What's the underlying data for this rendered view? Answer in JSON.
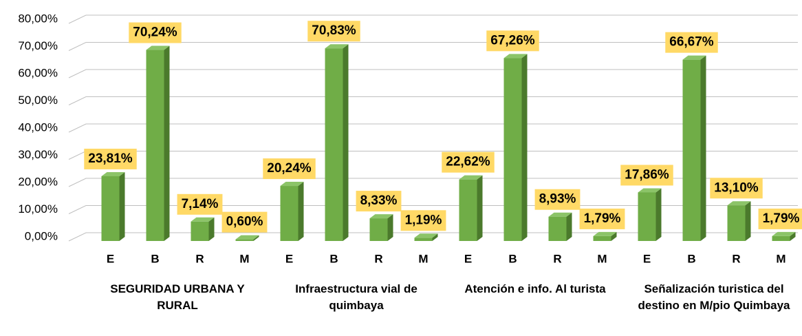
{
  "chart_data": {
    "type": "bar",
    "categories": [
      "E",
      "B",
      "R",
      "M",
      "E",
      "B",
      "R",
      "M",
      "E",
      "B",
      "R",
      "M",
      "E",
      "B",
      "R",
      "M"
    ],
    "groups": [
      "SEGURIDAD URBANA Y RURAL",
      "Infraestructura vial de quimbaya",
      "Atención e info. Al turista",
      "Señalización turistica del destino en M/pio Quimbaya"
    ],
    "values": [
      23.81,
      70.24,
      7.14,
      0.6,
      20.24,
      70.83,
      8.33,
      1.19,
      22.62,
      67.26,
      8.93,
      1.79,
      17.86,
      66.67,
      13.1,
      1.79
    ],
    "value_labels": [
      "23,81%",
      "70,24%",
      "7,14%",
      "0,60%",
      "20,24%",
      "70,83%",
      "8,33%",
      "1,19%",
      "22,62%",
      "67,26%",
      "8,93%",
      "1,79%",
      "17,86%",
      "66,67%",
      "13,10%",
      "1,79%"
    ],
    "color": "#70ad47",
    "ylim": [
      0,
      80
    ],
    "yticks": [
      {
        "value": 0,
        "label": "0,00%"
      },
      {
        "value": 10,
        "label": "10,00%"
      },
      {
        "value": 20,
        "label": "20,00%"
      },
      {
        "value": 30,
        "label": "30,00%"
      },
      {
        "value": 40,
        "label": "40,00%"
      },
      {
        "value": 50,
        "label": "50,00%"
      },
      {
        "value": 60,
        "label": "60,00%"
      },
      {
        "value": 70,
        "label": "70,00%"
      },
      {
        "value": 80,
        "label": "80,00%"
      }
    ],
    "grid": true
  }
}
